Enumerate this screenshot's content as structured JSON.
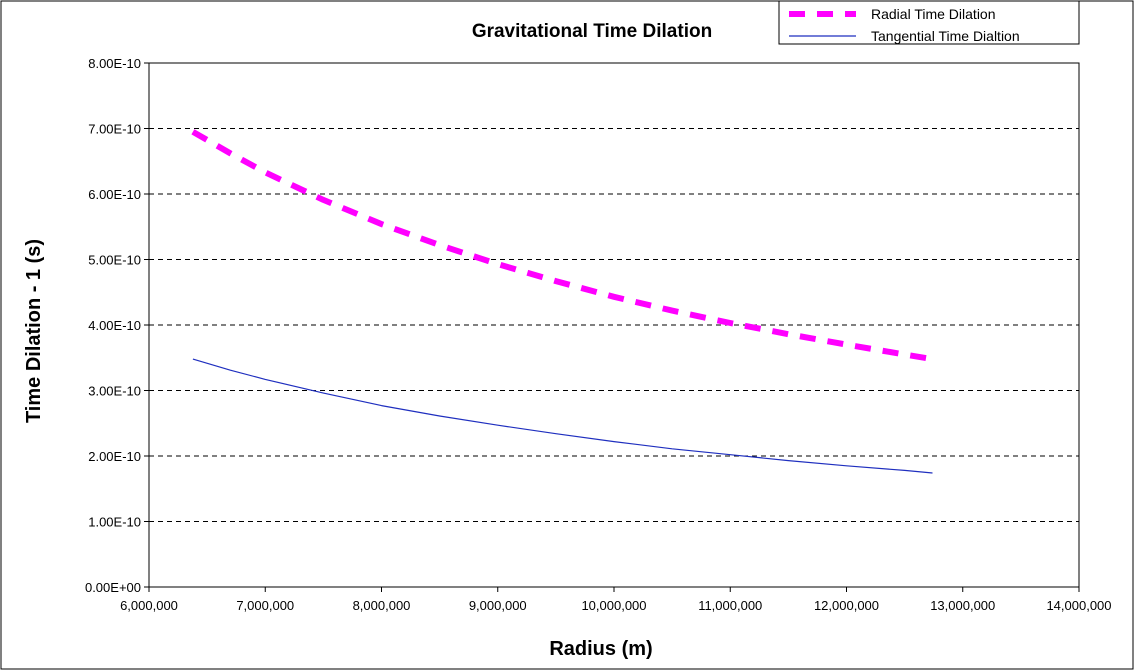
{
  "chart_data": {
    "type": "line",
    "title": "Gravitational Time Dilation",
    "xlabel": "Radius (m)",
    "ylabel": "Time Dilation - 1 (s)",
    "xlim": [
      6000000,
      14000000
    ],
    "ylim": [
      0,
      8e-10
    ],
    "x_ticks": [
      6000000,
      7000000,
      8000000,
      9000000,
      10000000,
      11000000,
      12000000,
      13000000,
      14000000
    ],
    "x_tick_labels": [
      "6,000,000",
      "7,000,000",
      "8,000,000",
      "9,000,000",
      "10,000,000",
      "11,000,000",
      "12,000,000",
      "13,000,000",
      "14,000,000"
    ],
    "y_ticks": [
      0,
      1e-10,
      2e-10,
      3e-10,
      4e-10,
      5e-10,
      6e-10,
      7e-10,
      8e-10
    ],
    "y_tick_labels": [
      "0.00E+00",
      "1.00E-10",
      "2.00E-10",
      "3.00E-10",
      "4.00E-10",
      "5.00E-10",
      "6.00E-10",
      "7.00E-10",
      "8.00E-10"
    ],
    "grid": "horizontal dashed",
    "legend_position": "top-right",
    "x": [
      6378000,
      6700000,
      7000000,
      7500000,
      8000000,
      8500000,
      9000000,
      9500000,
      10000000,
      10500000,
      11000000,
      11500000,
      12000000,
      12500000,
      12740000
    ],
    "series": [
      {
        "name": "Radial Time Dilation",
        "color": "#ff00ff",
        "style": "dashed-thick",
        "values": [
          6.95e-10,
          6.62e-10,
          6.33e-10,
          5.91e-10,
          5.54e-10,
          5.22e-10,
          4.93e-10,
          4.67e-10,
          4.43e-10,
          4.22e-10,
          4.03e-10,
          3.86e-10,
          3.7e-10,
          3.55e-10,
          3.48e-10
        ]
      },
      {
        "name": "Tangential Time Dialtion",
        "color": "#1f2fbf",
        "style": "solid-thin",
        "values": [
          3.48e-10,
          3.31e-10,
          3.17e-10,
          2.96e-10,
          2.77e-10,
          2.61e-10,
          2.47e-10,
          2.34e-10,
          2.22e-10,
          2.11e-10,
          2.02e-10,
          1.93e-10,
          1.85e-10,
          1.78e-10,
          1.74e-10
        ]
      }
    ]
  }
}
